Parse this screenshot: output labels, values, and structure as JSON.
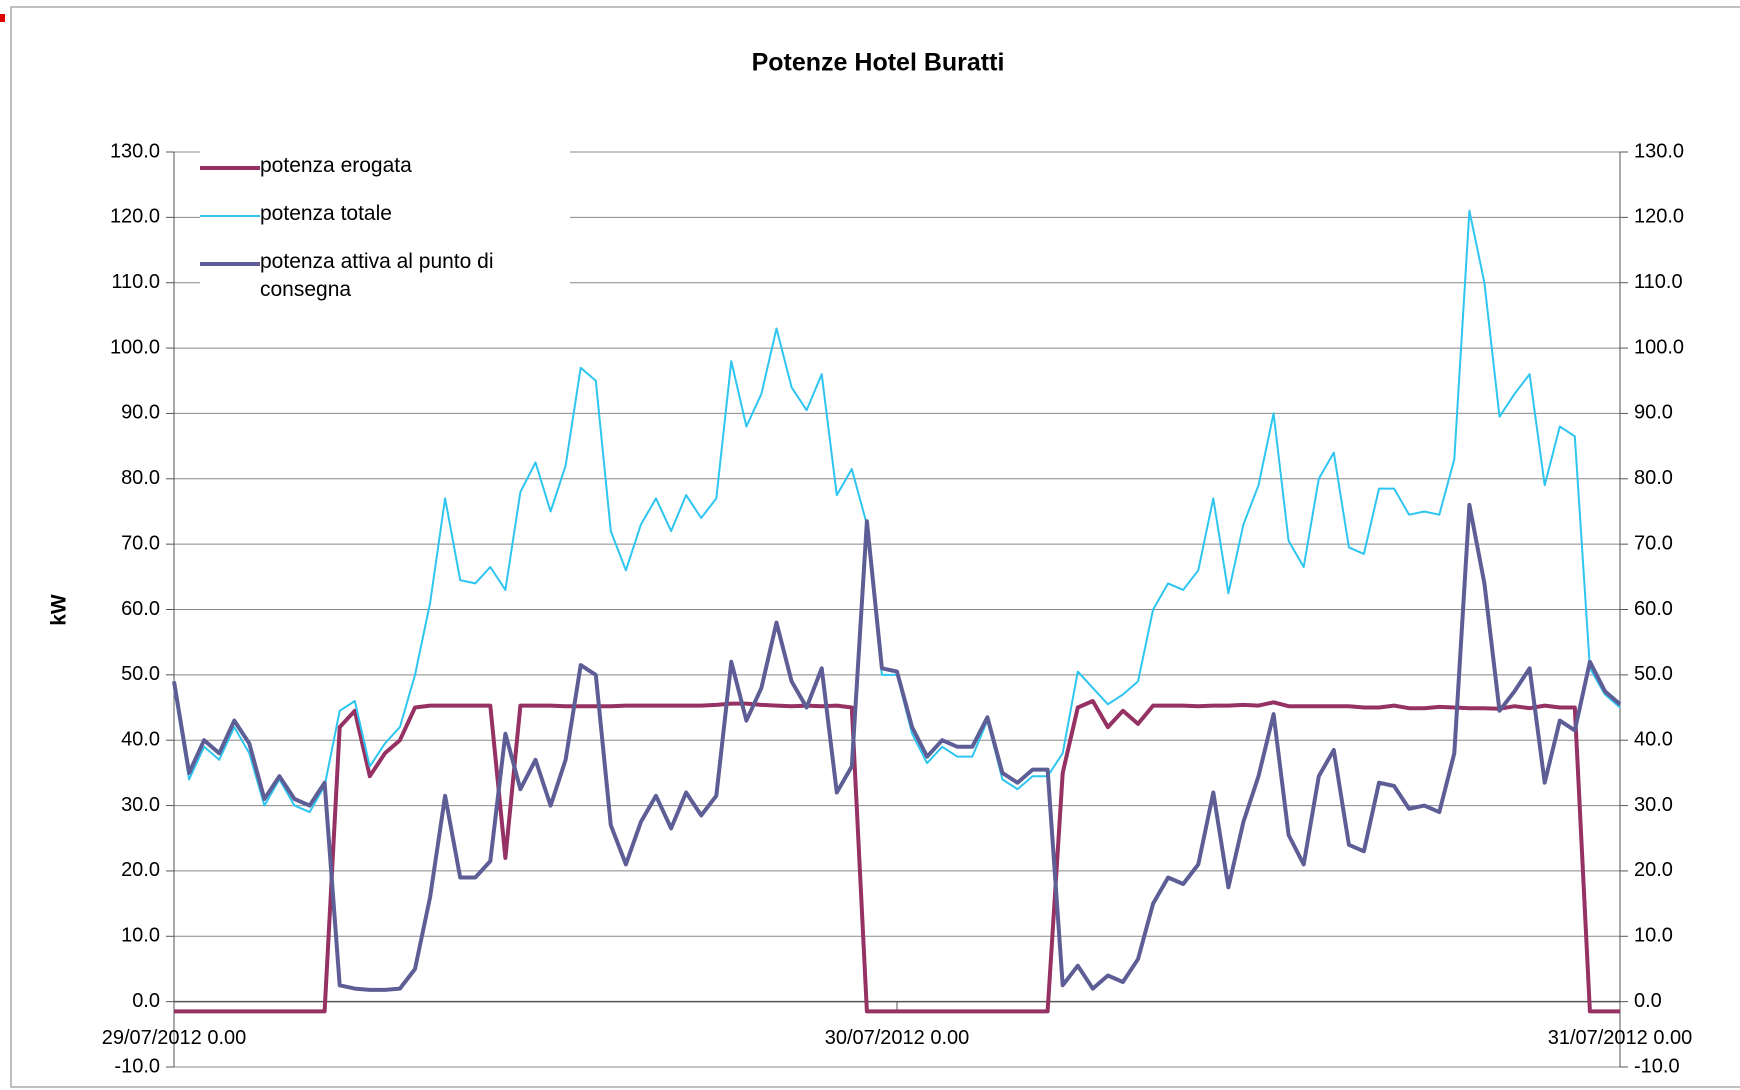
{
  "chart_data": {
    "type": "line",
    "title": "Potenze Hotel Buratti",
    "y_label": "kW",
    "categories": [
      "29/07/2012 0.00",
      null,
      null,
      null,
      null,
      null,
      null,
      null,
      null,
      null,
      null,
      null,
      null,
      null,
      null,
      null,
      null,
      null,
      null,
      null,
      null,
      null,
      null,
      null,
      null,
      null,
      null,
      null,
      null,
      null,
      null,
      null,
      null,
      null,
      null,
      null,
      null,
      null,
      null,
      null,
      null,
      null,
      null,
      null,
      null,
      null,
      null,
      null,
      "30/07/2012 0.00",
      null,
      null,
      null,
      null,
      null,
      null,
      null,
      null,
      null,
      null,
      null,
      null,
      null,
      null,
      null,
      null,
      null,
      null,
      null,
      null,
      null,
      null,
      null,
      null,
      null,
      null,
      null,
      null,
      null,
      null,
      null,
      null,
      null,
      null,
      null,
      null,
      null,
      null,
      null,
      null,
      null,
      null,
      null,
      null,
      null,
      null,
      null,
      "31/07/2012 0.00"
    ],
    "series": [
      {
        "name": "potenza erogata",
        "color": "#953163",
        "width": 4,
        "values": [
          -1.5,
          -1.5,
          -1.5,
          -1.5,
          -1.5,
          -1.5,
          -1.5,
          -1.5,
          -1.5,
          -1.5,
          -1.5,
          42,
          44.5,
          34.5,
          38,
          40,
          45,
          45.3,
          45.3,
          45.3,
          45.3,
          45.3,
          22,
          45.3,
          45.3,
          45.3,
          45.2,
          45.2,
          45.2,
          45.2,
          45.3,
          45.3,
          45.3,
          45.3,
          45.3,
          45.3,
          45.4,
          45.6,
          45.6,
          45.4,
          45.3,
          45.2,
          45.3,
          45.2,
          45.3,
          45,
          -1.5,
          -1.5,
          -1.5,
          -1.5,
          -1.5,
          -1.5,
          -1.5,
          -1.5,
          -1.5,
          -1.5,
          -1.5,
          -1.5,
          -1.5,
          35,
          45,
          46,
          42,
          44.5,
          42.5,
          45.3,
          45.3,
          45.3,
          45.2,
          45.3,
          45.3,
          45.4,
          45.3,
          45.8,
          45.2,
          45.2,
          45.2,
          45.2,
          45.2,
          45,
          45,
          45.3,
          44.9,
          44.9,
          45.1,
          45,
          44.9,
          44.9,
          44.8,
          45.2,
          44.9,
          45.3,
          45,
          45,
          -1.5,
          -1.5,
          -1.5
        ]
      },
      {
        "name": "potenza totale",
        "color": "#2ec5f0",
        "width": 2,
        "values": [
          48,
          34,
          39,
          37,
          42,
          38,
          30,
          34,
          30,
          29,
          33,
          44.5,
          46,
          36,
          39.5,
          42,
          50,
          61,
          77,
          64.5,
          64,
          66.5,
          63,
          78,
          82.5,
          75,
          82,
          97,
          95,
          72,
          66,
          73,
          77,
          72,
          77.5,
          74,
          77,
          98,
          88,
          93,
          103,
          94,
          90.5,
          96,
          77.5,
          81.5,
          73,
          50,
          50,
          41,
          36.5,
          39,
          37.5,
          37.5,
          43,
          34,
          32.5,
          34.5,
          34.5,
          38,
          50.5,
          48,
          45.5,
          47,
          49,
          60,
          64,
          63,
          66,
          77,
          62.5,
          73,
          79,
          90,
          70.5,
          66.5,
          80,
          84,
          69.5,
          68.5,
          78.5,
          78.5,
          74.5,
          75,
          74.5,
          83,
          121,
          110,
          89.5,
          93,
          96,
          79,
          88,
          86.5,
          51,
          47,
          45
        ]
      },
      {
        "name": "potenza attiva al punto di consegna",
        "color": "#5e5e96",
        "width": 4,
        "values": [
          49,
          35,
          40,
          38,
          43,
          39.5,
          31,
          34.5,
          31,
          30,
          33.5,
          2.5,
          2,
          1.8,
          1.8,
          2,
          5,
          16,
          31.5,
          19,
          19,
          21.5,
          41,
          32.5,
          37,
          30,
          37,
          51.5,
          50,
          27,
          21,
          27.5,
          31.5,
          26.5,
          32,
          28.5,
          31.5,
          52,
          43,
          48,
          58,
          49,
          45,
          51,
          32,
          36,
          73.5,
          51,
          50.5,
          42,
          37.5,
          40,
          39,
          39,
          43.5,
          35,
          33.5,
          35.5,
          35.5,
          2.5,
          5.5,
          2,
          4,
          3,
          6.5,
          15,
          19,
          18,
          21,
          32,
          17.5,
          27.5,
          34.5,
          44,
          25.5,
          21,
          34.5,
          38.5,
          24,
          23,
          33.5,
          33,
          29.5,
          30,
          29,
          38,
          76,
          64,
          44.5,
          47.5,
          51,
          33.5,
          43,
          41.5,
          52,
          47.5,
          45.5
        ]
      }
    ],
    "ylim": [
      -10,
      130
    ],
    "yticks": [
      {
        "value": -10,
        "label": "-10.0"
      },
      {
        "value": 0,
        "label": "0.0"
      },
      {
        "value": 10,
        "label": "10.0"
      },
      {
        "value": 20,
        "label": "20.0"
      },
      {
        "value": 30,
        "label": "30.0"
      },
      {
        "value": 40,
        "label": "40.0"
      },
      {
        "value": 50,
        "label": "50.0"
      },
      {
        "value": 60,
        "label": "60.0"
      },
      {
        "value": 70,
        "label": "70.0"
      },
      {
        "value": 80,
        "label": "80.0"
      },
      {
        "value": 90,
        "label": "90.0"
      },
      {
        "value": 100,
        "label": "100.0"
      },
      {
        "value": 110,
        "label": "110.0"
      },
      {
        "value": 120,
        "label": "120.0"
      },
      {
        "value": 130,
        "label": "130.0"
      }
    ],
    "y2lim": [
      -10,
      130
    ],
    "y2ticks": [
      {
        "value": -10,
        "label": "-10.0"
      },
      {
        "value": 0,
        "label": "0.0"
      },
      {
        "value": 10,
        "label": "10.0"
      },
      {
        "value": 20,
        "label": "20.0"
      },
      {
        "value": 30,
        "label": "30.0"
      },
      {
        "value": 40,
        "label": "40.0"
      },
      {
        "value": 50,
        "label": "50.0"
      },
      {
        "value": 60,
        "label": "60.0"
      },
      {
        "value": 70,
        "label": "70.0"
      },
      {
        "value": 80,
        "label": "80.0"
      },
      {
        "value": 90,
        "label": "90.0"
      },
      {
        "value": 100,
        "label": "100.0"
      },
      {
        "value": 110,
        "label": "110.0"
      },
      {
        "value": 120,
        "label": "120.0"
      },
      {
        "value": 130,
        "label": "130.0"
      }
    ],
    "grid": true,
    "legend": "top-left"
  }
}
